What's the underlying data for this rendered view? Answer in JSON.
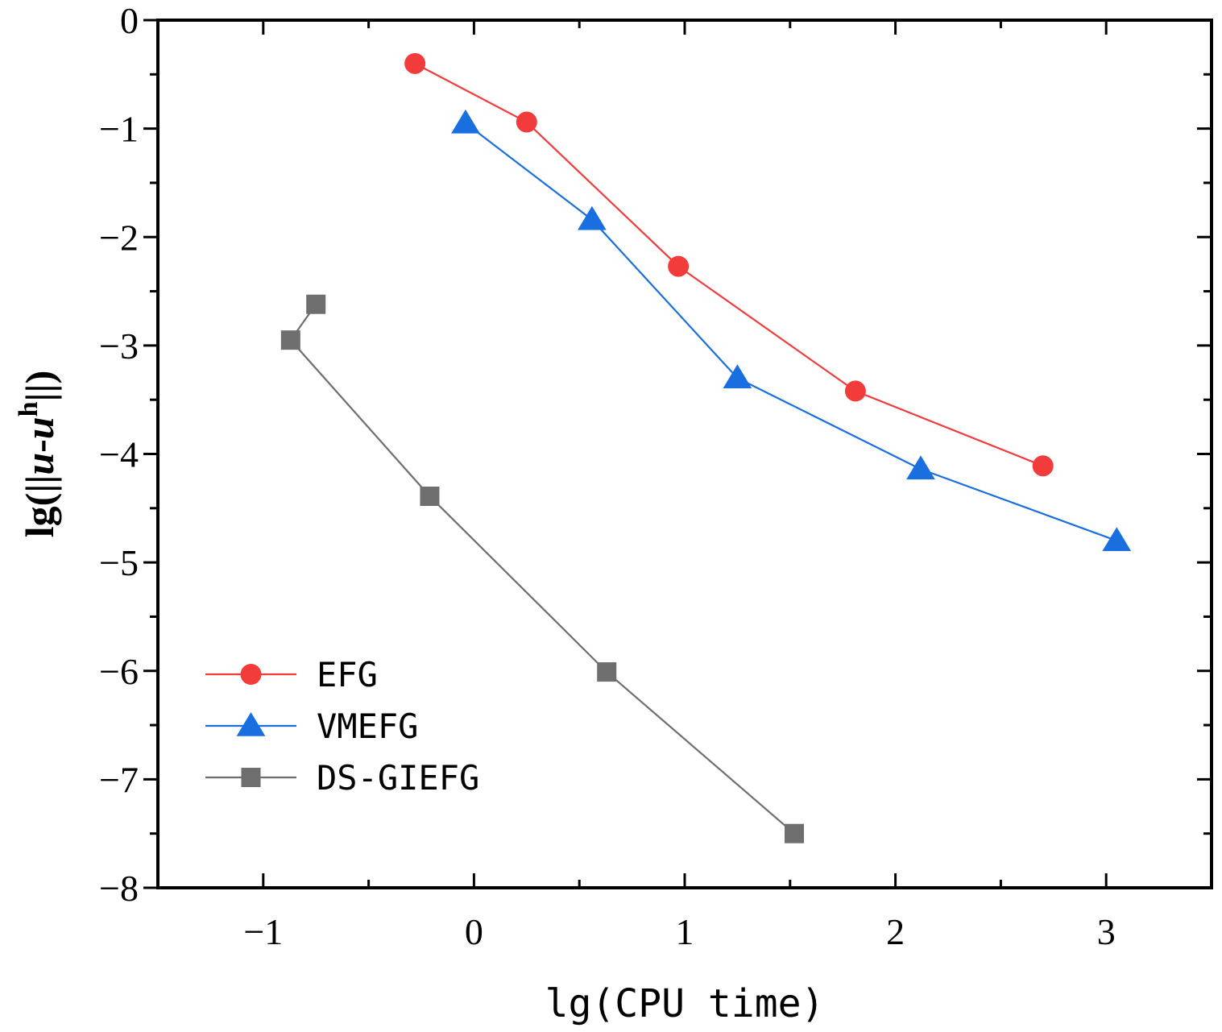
{
  "chart_data": {
    "type": "line",
    "title": "",
    "xlabel": "lg(CPU time)",
    "ylabel": {
      "prefix": "lg(||",
      "u": "u",
      "dash": "-",
      "uh": "u",
      "sup": "h",
      "suffix": "||)"
    },
    "xlim": [
      -1.5,
      3.5
    ],
    "ylim": [
      -8,
      0
    ],
    "xticks": [
      -1,
      0,
      1,
      2,
      3
    ],
    "xtick_labels": [
      "−1",
      "0",
      "1",
      "2",
      "3"
    ],
    "yticks": [
      0,
      -1,
      -2,
      -3,
      -4,
      -5,
      -6,
      -7,
      -8
    ],
    "ytick_labels": [
      "0",
      "−1",
      "−2",
      "−3",
      "−4",
      "−5",
      "−6",
      "−7",
      "−8"
    ],
    "legend_position": "bottom-left",
    "series": [
      {
        "name": "EFG",
        "color": "#f23c3c",
        "marker": "circle",
        "x": [
          -0.28,
          0.25,
          0.97,
          1.81,
          2.7
        ],
        "y": [
          -0.4,
          -0.94,
          -2.27,
          -3.42,
          -4.11
        ]
      },
      {
        "name": "VMEFG",
        "color": "#1a6fe0",
        "marker": "triangle",
        "x": [
          -0.04,
          0.56,
          1.25,
          2.12,
          3.05
        ],
        "y": [
          -0.95,
          -1.84,
          -3.3,
          -4.14,
          -4.8
        ]
      },
      {
        "name": "DS-GIEFG",
        "color": "#6e6e6e",
        "marker": "square",
        "x": [
          -0.75,
          -0.87,
          -0.21,
          0.63,
          1.52
        ],
        "y": [
          -2.62,
          -2.95,
          -4.39,
          -6.01,
          -7.5
        ]
      }
    ]
  }
}
